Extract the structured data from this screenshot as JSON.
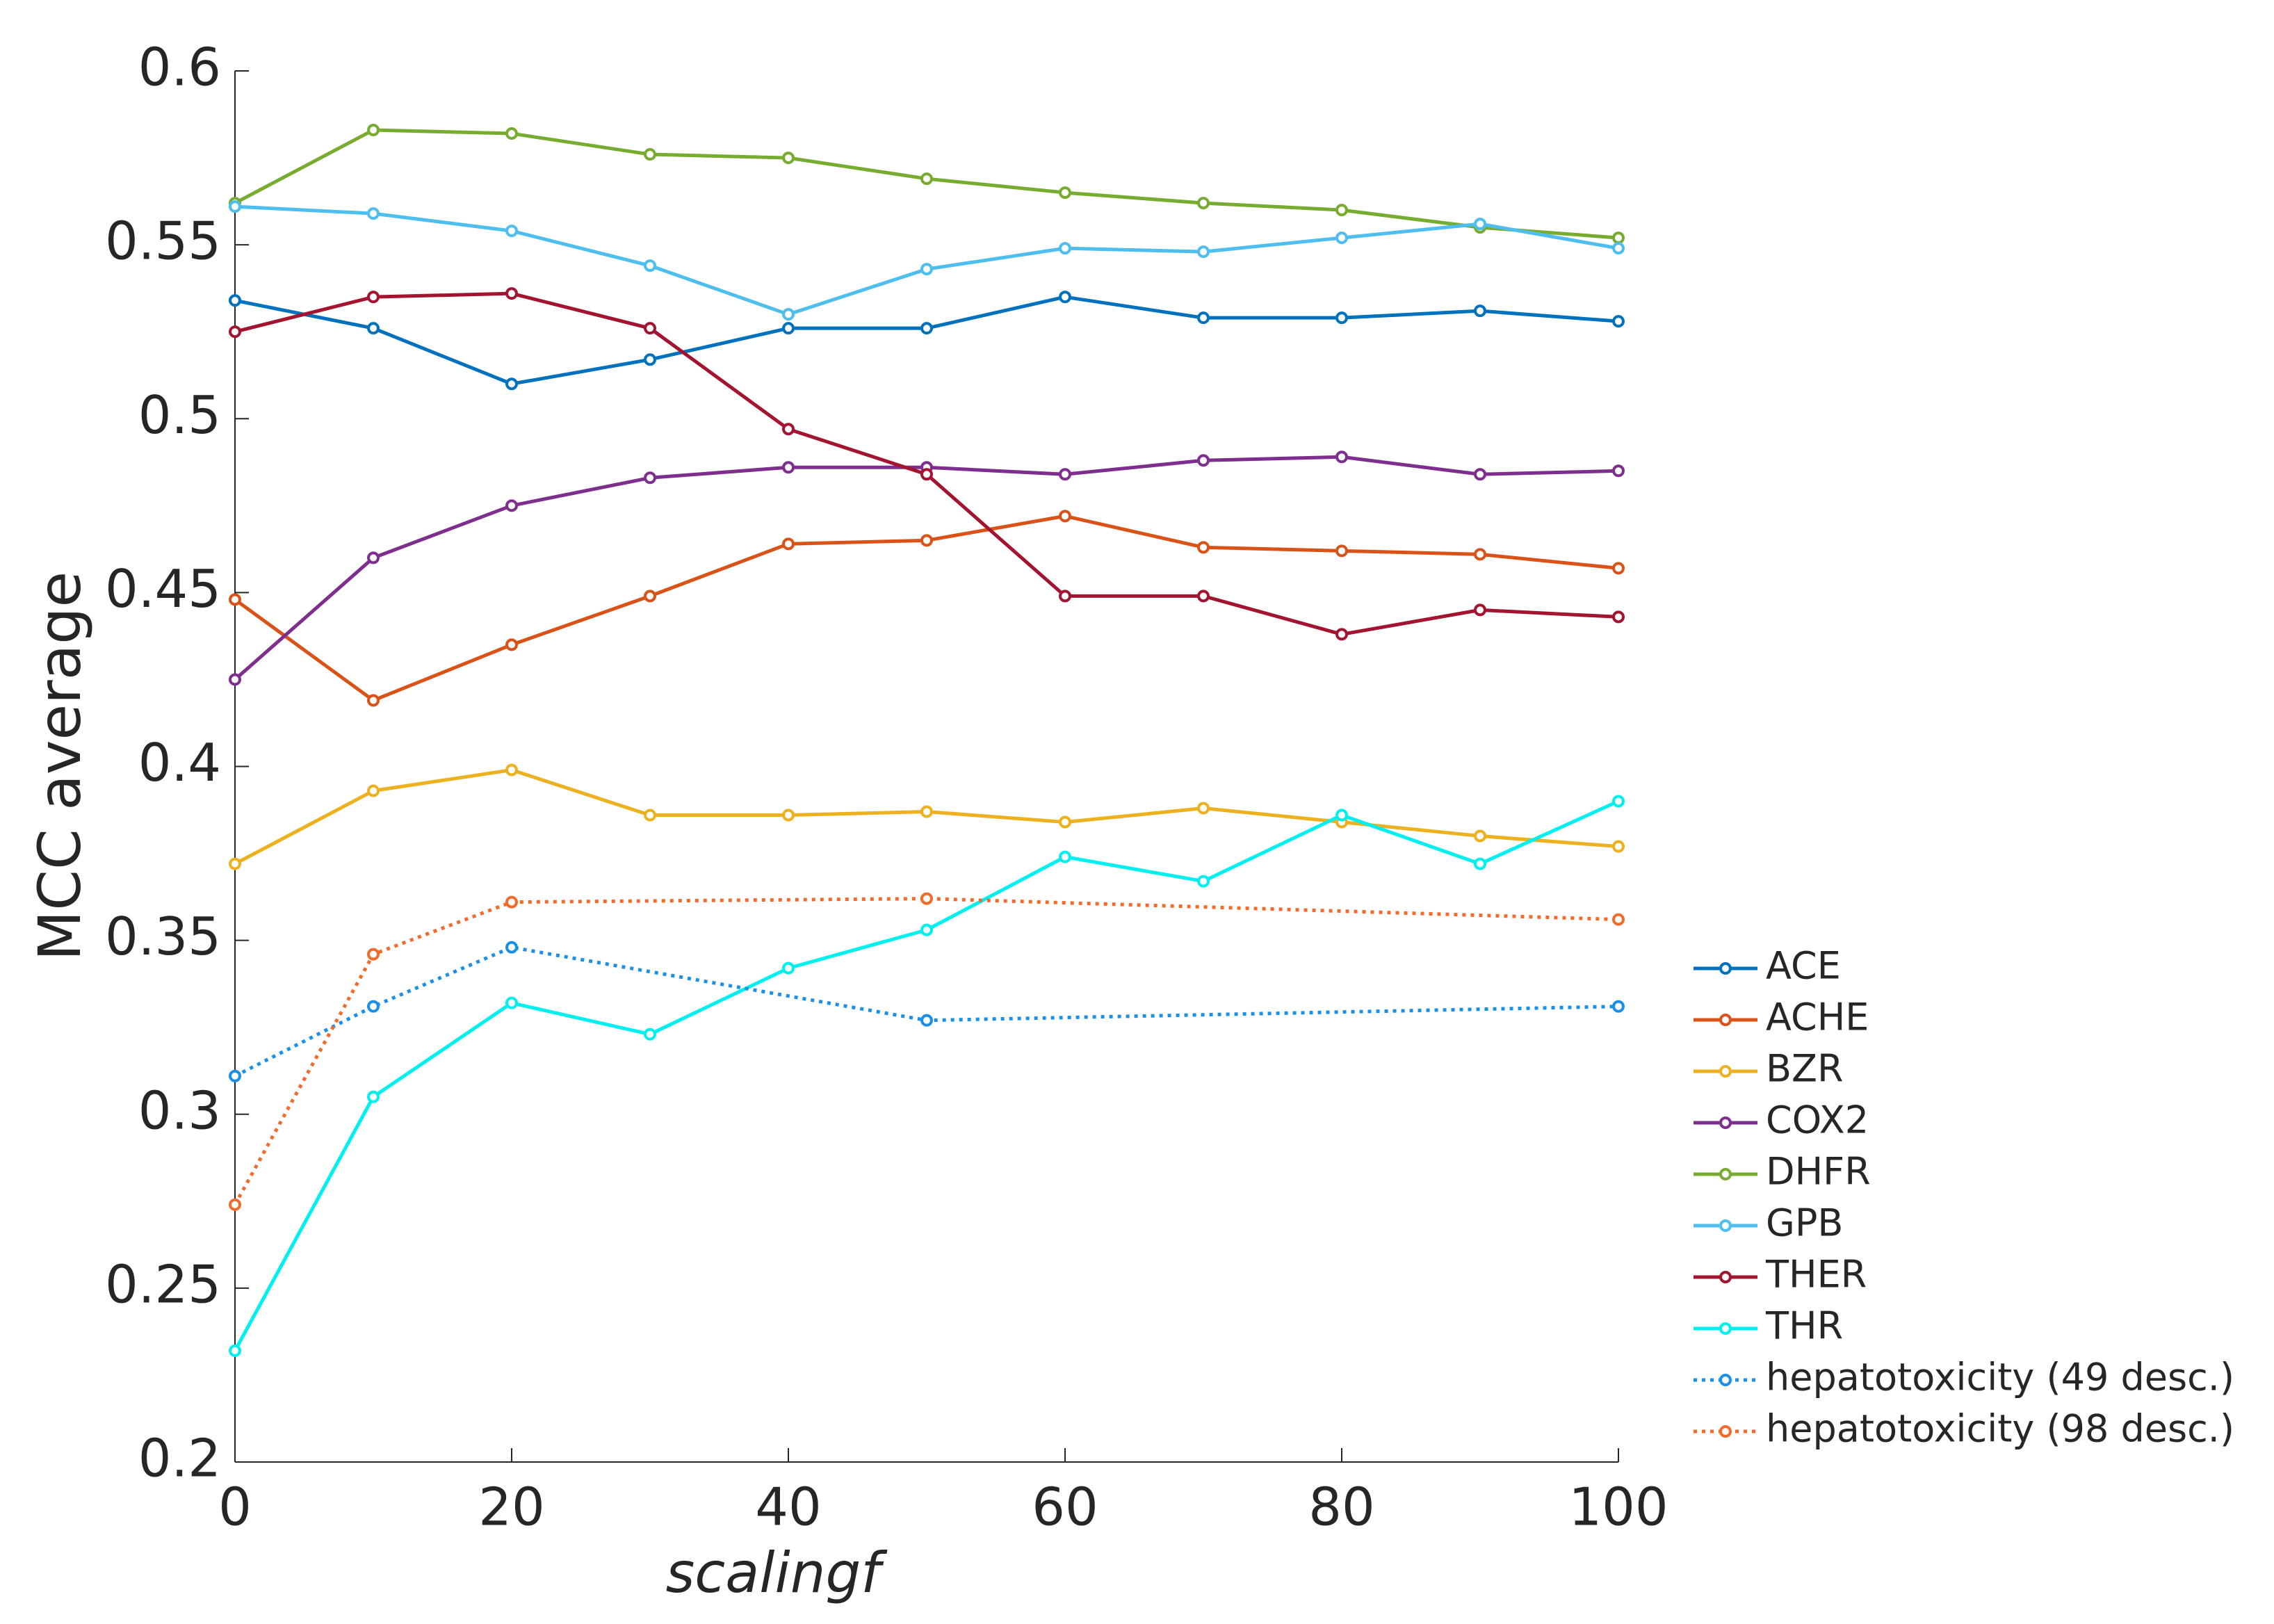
{
  "chart_data": {
    "type": "line",
    "xlabel": "scalingf",
    "ylabel": "MCC average",
    "x": [
      0,
      10,
      20,
      30,
      40,
      50,
      60,
      70,
      80,
      90,
      100
    ],
    "xlim": [
      0,
      100
    ],
    "xticks": [
      0,
      20,
      40,
      60,
      80,
      100
    ],
    "ylim": [
      0.2,
      0.6
    ],
    "yticks": [
      0.2,
      0.25,
      0.3,
      0.35,
      0.4,
      0.45,
      0.5,
      0.55,
      0.6
    ],
    "legend": "right",
    "series": [
      {
        "name": "ACE",
        "color": "#0072BD",
        "values": [
          0.534,
          0.526,
          0.51,
          0.517,
          0.526,
          0.526,
          0.535,
          0.529,
          0.529,
          0.531,
          0.528
        ]
      },
      {
        "name": "ACHE",
        "color": "#D95319",
        "values": [
          0.448,
          0.419,
          0.435,
          0.449,
          0.464,
          0.465,
          0.472,
          0.463,
          0.462,
          0.461,
          0.457
        ]
      },
      {
        "name": "BZR",
        "color": "#EDB120",
        "values": [
          0.372,
          0.393,
          0.399,
          0.386,
          0.386,
          0.387,
          0.384,
          0.388,
          0.384,
          0.38,
          0.377
        ]
      },
      {
        "name": "COX2",
        "color": "#7E2F8E",
        "values": [
          0.425,
          0.46,
          0.475,
          0.483,
          0.486,
          0.486,
          0.484,
          0.488,
          0.489,
          0.484,
          0.485
        ]
      },
      {
        "name": "DHFR",
        "color": "#77AC30",
        "values": [
          0.562,
          0.583,
          0.582,
          0.576,
          0.575,
          0.569,
          0.565,
          0.562,
          0.56,
          0.555,
          0.552
        ]
      },
      {
        "name": "GPB",
        "color": "#4DBEEE",
        "values": [
          0.561,
          0.559,
          0.554,
          0.544,
          0.53,
          0.543,
          0.549,
          0.548,
          0.552,
          0.556,
          0.549
        ]
      },
      {
        "name": "THER",
        "color": "#A2142F",
        "values": [
          0.525,
          0.535,
          0.536,
          0.526,
          0.497,
          0.484,
          0.449,
          0.449,
          0.438,
          0.445,
          0.443
        ]
      },
      {
        "name": "THR",
        "color": "#00F0F0",
        "values": [
          0.232,
          0.305,
          0.332,
          0.323,
          0.342,
          0.353,
          0.374,
          0.367,
          0.386,
          0.372,
          0.39
        ]
      },
      {
        "name": "hepatotoxicity (49 desc.)",
        "color": "#1A90E6",
        "dotted": true,
        "x": [
          0,
          10,
          20,
          50,
          100
        ],
        "values": [
          0.311,
          0.331,
          0.348,
          0.327,
          0.331
        ]
      },
      {
        "name": "hepatotoxicity (98 desc.)",
        "color": "#F26B2A",
        "dotted": true,
        "x": [
          0,
          10,
          20,
          50,
          100
        ],
        "values": [
          0.274,
          0.346,
          0.361,
          0.362,
          0.356
        ]
      }
    ]
  }
}
